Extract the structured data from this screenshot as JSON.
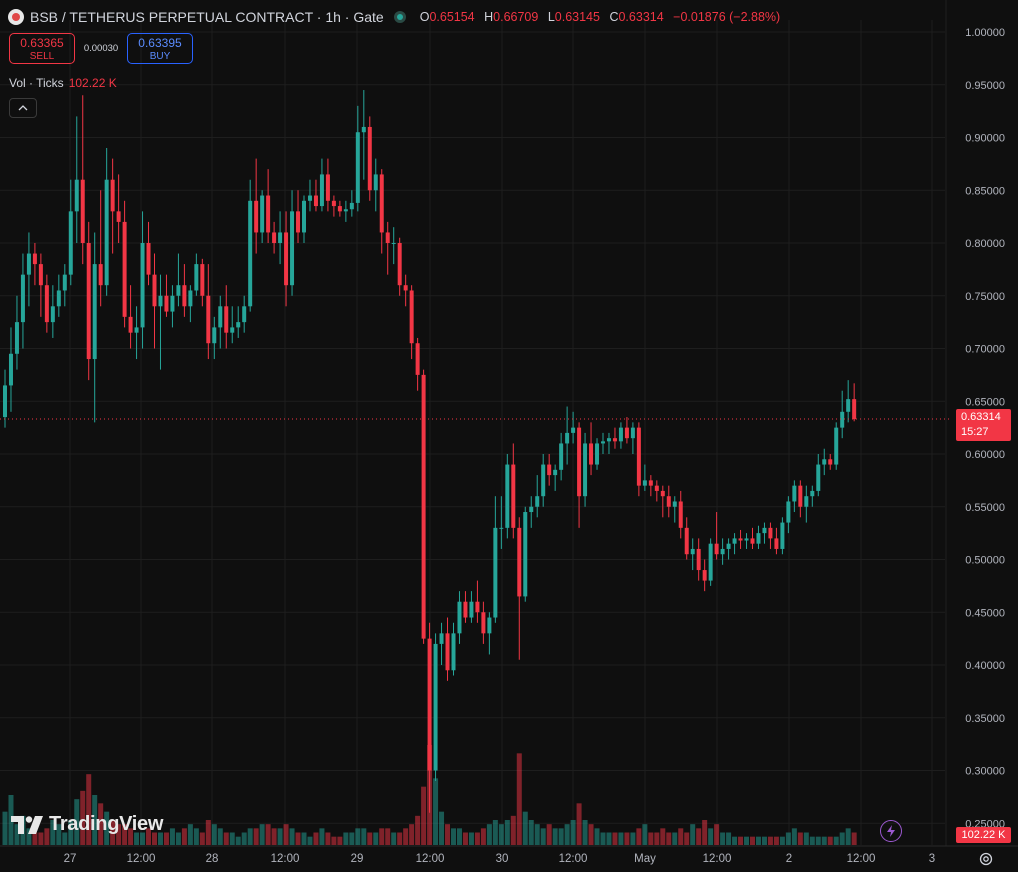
{
  "header": {
    "symbol_title": "BSB / TETHERUS PERPETUAL CONTRACT · 1h · Gate",
    "ohlc": {
      "o_label": "O",
      "o": "0.65154",
      "h_label": "H",
      "h": "0.66709",
      "l_label": "L",
      "l": "0.63145",
      "c_label": "C",
      "c": "0.63314",
      "change": "−0.01876 (−2.88%)"
    }
  },
  "trade": {
    "sell_price": "0.63365",
    "sell_label": "SELL",
    "spread": "0.00030",
    "buy_price": "0.63395",
    "buy_label": "BUY"
  },
  "volume_legend": {
    "label": "Vol · Ticks",
    "value": "102.22 K"
  },
  "logo_text": "TradingView",
  "price_tag": {
    "price": "0.63314",
    "countdown": "15:27"
  },
  "volume_tag": "102.22 K",
  "colors": {
    "up": "#26a69a",
    "down": "#f23645",
    "bg": "#0f0f0f",
    "grid": "#1e1e1e"
  },
  "icons": [
    "symbol-logo-icon",
    "market-status-icon",
    "chevron-up-icon",
    "tradingview-logo-icon",
    "lightning-icon",
    "gear-icon"
  ],
  "chart_data": {
    "type": "candlestick",
    "timeframe": "1h",
    "y_ticks": [
      "1.00000",
      "0.95000",
      "0.90000",
      "0.85000",
      "0.80000",
      "0.75000",
      "0.70000",
      "0.65000",
      "0.60000",
      "0.55000",
      "0.50000",
      "0.45000",
      "0.40000",
      "0.35000",
      "0.30000",
      "0.25000"
    ],
    "ylim": [
      0.232,
      1.012
    ],
    "x_labels": [
      "27",
      "12:00",
      "28",
      "12:00",
      "29",
      "12:00",
      "30",
      "12:00",
      "May",
      "12:00",
      "2",
      "12:00",
      "3"
    ],
    "last_price": 0.63314,
    "candles": [
      {
        "o": 0.635,
        "h": 0.68,
        "l": 0.625,
        "c": 0.665
      },
      {
        "o": 0.665,
        "h": 0.72,
        "l": 0.64,
        "c": 0.695
      },
      {
        "o": 0.695,
        "h": 0.75,
        "l": 0.68,
        "c": 0.725
      },
      {
        "o": 0.725,
        "h": 0.79,
        "l": 0.7,
        "c": 0.77
      },
      {
        "o": 0.77,
        "h": 0.81,
        "l": 0.74,
        "c": 0.79
      },
      {
        "o": 0.79,
        "h": 0.8,
        "l": 0.76,
        "c": 0.78
      },
      {
        "o": 0.78,
        "h": 0.79,
        "l": 0.73,
        "c": 0.76
      },
      {
        "o": 0.76,
        "h": 0.77,
        "l": 0.715,
        "c": 0.725
      },
      {
        "o": 0.725,
        "h": 0.76,
        "l": 0.71,
        "c": 0.74
      },
      {
        "o": 0.74,
        "h": 0.77,
        "l": 0.73,
        "c": 0.755
      },
      {
        "o": 0.755,
        "h": 0.78,
        "l": 0.74,
        "c": 0.77
      },
      {
        "o": 0.77,
        "h": 0.86,
        "l": 0.76,
        "c": 0.83
      },
      {
        "o": 0.83,
        "h": 0.92,
        "l": 0.8,
        "c": 0.86
      },
      {
        "o": 0.86,
        "h": 0.94,
        "l": 0.78,
        "c": 0.8
      },
      {
        "o": 0.8,
        "h": 0.82,
        "l": 0.67,
        "c": 0.69
      },
      {
        "o": 0.69,
        "h": 0.81,
        "l": 0.63,
        "c": 0.78
      },
      {
        "o": 0.78,
        "h": 0.85,
        "l": 0.74,
        "c": 0.76
      },
      {
        "o": 0.76,
        "h": 0.89,
        "l": 0.75,
        "c": 0.86
      },
      {
        "o": 0.86,
        "h": 0.88,
        "l": 0.79,
        "c": 0.83
      },
      {
        "o": 0.83,
        "h": 0.865,
        "l": 0.8,
        "c": 0.82
      },
      {
        "o": 0.82,
        "h": 0.84,
        "l": 0.72,
        "c": 0.73
      },
      {
        "o": 0.73,
        "h": 0.76,
        "l": 0.7,
        "c": 0.715
      },
      {
        "o": 0.715,
        "h": 0.74,
        "l": 0.69,
        "c": 0.72
      },
      {
        "o": 0.72,
        "h": 0.83,
        "l": 0.7,
        "c": 0.8
      },
      {
        "o": 0.8,
        "h": 0.82,
        "l": 0.76,
        "c": 0.77
      },
      {
        "o": 0.77,
        "h": 0.79,
        "l": 0.7,
        "c": 0.74
      },
      {
        "o": 0.74,
        "h": 0.77,
        "l": 0.68,
        "c": 0.75
      },
      {
        "o": 0.75,
        "h": 0.77,
        "l": 0.73,
        "c": 0.735
      },
      {
        "o": 0.735,
        "h": 0.76,
        "l": 0.72,
        "c": 0.75
      },
      {
        "o": 0.75,
        "h": 0.79,
        "l": 0.74,
        "c": 0.76
      },
      {
        "o": 0.76,
        "h": 0.78,
        "l": 0.73,
        "c": 0.74
      },
      {
        "o": 0.74,
        "h": 0.76,
        "l": 0.725,
        "c": 0.755
      },
      {
        "o": 0.755,
        "h": 0.79,
        "l": 0.75,
        "c": 0.78
      },
      {
        "o": 0.78,
        "h": 0.785,
        "l": 0.74,
        "c": 0.75
      },
      {
        "o": 0.75,
        "h": 0.78,
        "l": 0.69,
        "c": 0.705
      },
      {
        "o": 0.705,
        "h": 0.73,
        "l": 0.69,
        "c": 0.72
      },
      {
        "o": 0.72,
        "h": 0.75,
        "l": 0.7,
        "c": 0.74
      },
      {
        "o": 0.74,
        "h": 0.76,
        "l": 0.7,
        "c": 0.715
      },
      {
        "o": 0.715,
        "h": 0.74,
        "l": 0.705,
        "c": 0.72
      },
      {
        "o": 0.72,
        "h": 0.74,
        "l": 0.71,
        "c": 0.725
      },
      {
        "o": 0.725,
        "h": 0.75,
        "l": 0.715,
        "c": 0.74
      },
      {
        "o": 0.74,
        "h": 0.86,
        "l": 0.735,
        "c": 0.84
      },
      {
        "o": 0.84,
        "h": 0.88,
        "l": 0.79,
        "c": 0.81
      },
      {
        "o": 0.81,
        "h": 0.85,
        "l": 0.8,
        "c": 0.845
      },
      {
        "o": 0.845,
        "h": 0.87,
        "l": 0.8,
        "c": 0.81
      },
      {
        "o": 0.81,
        "h": 0.82,
        "l": 0.79,
        "c": 0.8
      },
      {
        "o": 0.8,
        "h": 0.83,
        "l": 0.78,
        "c": 0.81
      },
      {
        "o": 0.81,
        "h": 0.83,
        "l": 0.74,
        "c": 0.76
      },
      {
        "o": 0.76,
        "h": 0.85,
        "l": 0.75,
        "c": 0.83
      },
      {
        "o": 0.83,
        "h": 0.85,
        "l": 0.8,
        "c": 0.81
      },
      {
        "o": 0.81,
        "h": 0.845,
        "l": 0.8,
        "c": 0.84
      },
      {
        "o": 0.84,
        "h": 0.86,
        "l": 0.83,
        "c": 0.845
      },
      {
        "o": 0.845,
        "h": 0.86,
        "l": 0.83,
        "c": 0.835
      },
      {
        "o": 0.835,
        "h": 0.88,
        "l": 0.83,
        "c": 0.865
      },
      {
        "o": 0.865,
        "h": 0.88,
        "l": 0.83,
        "c": 0.84
      },
      {
        "o": 0.84,
        "h": 0.845,
        "l": 0.825,
        "c": 0.835
      },
      {
        "o": 0.835,
        "h": 0.84,
        "l": 0.825,
        "c": 0.83
      },
      {
        "o": 0.83,
        "h": 0.84,
        "l": 0.82,
        "c": 0.832
      },
      {
        "o": 0.832,
        "h": 0.85,
        "l": 0.825,
        "c": 0.838
      },
      {
        "o": 0.838,
        "h": 0.93,
        "l": 0.83,
        "c": 0.905
      },
      {
        "o": 0.905,
        "h": 0.945,
        "l": 0.86,
        "c": 0.91
      },
      {
        "o": 0.91,
        "h": 0.92,
        "l": 0.84,
        "c": 0.85
      },
      {
        "o": 0.85,
        "h": 0.88,
        "l": 0.83,
        "c": 0.865
      },
      {
        "o": 0.865,
        "h": 0.87,
        "l": 0.79,
        "c": 0.81
      },
      {
        "o": 0.81,
        "h": 0.82,
        "l": 0.77,
        "c": 0.8
      },
      {
        "o": 0.8,
        "h": 0.815,
        "l": 0.78,
        "c": 0.8
      },
      {
        "o": 0.8,
        "h": 0.805,
        "l": 0.75,
        "c": 0.76
      },
      {
        "o": 0.76,
        "h": 0.77,
        "l": 0.74,
        "c": 0.755
      },
      {
        "o": 0.755,
        "h": 0.76,
        "l": 0.69,
        "c": 0.705
      },
      {
        "o": 0.705,
        "h": 0.71,
        "l": 0.66,
        "c": 0.675
      },
      {
        "o": 0.675,
        "h": 0.68,
        "l": 0.42,
        "c": 0.425
      },
      {
        "o": 0.425,
        "h": 0.44,
        "l": 0.26,
        "c": 0.3
      },
      {
        "o": 0.3,
        "h": 0.43,
        "l": 0.29,
        "c": 0.42
      },
      {
        "o": 0.42,
        "h": 0.44,
        "l": 0.4,
        "c": 0.43
      },
      {
        "o": 0.43,
        "h": 0.445,
        "l": 0.385,
        "c": 0.395
      },
      {
        "o": 0.395,
        "h": 0.44,
        "l": 0.39,
        "c": 0.43
      },
      {
        "o": 0.43,
        "h": 0.47,
        "l": 0.42,
        "c": 0.46
      },
      {
        "o": 0.46,
        "h": 0.47,
        "l": 0.44,
        "c": 0.445
      },
      {
        "o": 0.445,
        "h": 0.47,
        "l": 0.44,
        "c": 0.46
      },
      {
        "o": 0.46,
        "h": 0.48,
        "l": 0.44,
        "c": 0.45
      },
      {
        "o": 0.45,
        "h": 0.46,
        "l": 0.42,
        "c": 0.43
      },
      {
        "o": 0.43,
        "h": 0.45,
        "l": 0.41,
        "c": 0.445
      },
      {
        "o": 0.445,
        "h": 0.56,
        "l": 0.44,
        "c": 0.53
      },
      {
        "o": 0.53,
        "h": 0.56,
        "l": 0.51,
        "c": 0.53
      },
      {
        "o": 0.53,
        "h": 0.6,
        "l": 0.52,
        "c": 0.59
      },
      {
        "o": 0.59,
        "h": 0.61,
        "l": 0.52,
        "c": 0.53
      },
      {
        "o": 0.53,
        "h": 0.54,
        "l": 0.405,
        "c": 0.465
      },
      {
        "o": 0.465,
        "h": 0.55,
        "l": 0.46,
        "c": 0.545
      },
      {
        "o": 0.545,
        "h": 0.56,
        "l": 0.53,
        "c": 0.55
      },
      {
        "o": 0.55,
        "h": 0.58,
        "l": 0.54,
        "c": 0.56
      },
      {
        "o": 0.56,
        "h": 0.6,
        "l": 0.55,
        "c": 0.59
      },
      {
        "o": 0.59,
        "h": 0.6,
        "l": 0.57,
        "c": 0.58
      },
      {
        "o": 0.58,
        "h": 0.59,
        "l": 0.565,
        "c": 0.585
      },
      {
        "o": 0.585,
        "h": 0.62,
        "l": 0.575,
        "c": 0.61
      },
      {
        "o": 0.61,
        "h": 0.645,
        "l": 0.59,
        "c": 0.62
      },
      {
        "o": 0.62,
        "h": 0.64,
        "l": 0.61,
        "c": 0.625
      },
      {
        "o": 0.625,
        "h": 0.63,
        "l": 0.53,
        "c": 0.56
      },
      {
        "o": 0.56,
        "h": 0.62,
        "l": 0.55,
        "c": 0.61
      },
      {
        "o": 0.61,
        "h": 0.63,
        "l": 0.58,
        "c": 0.59
      },
      {
        "o": 0.59,
        "h": 0.615,
        "l": 0.585,
        "c": 0.61
      },
      {
        "o": 0.61,
        "h": 0.62,
        "l": 0.6,
        "c": 0.612
      },
      {
        "o": 0.612,
        "h": 0.62,
        "l": 0.6,
        "c": 0.615
      },
      {
        "o": 0.615,
        "h": 0.625,
        "l": 0.605,
        "c": 0.612
      },
      {
        "o": 0.612,
        "h": 0.63,
        "l": 0.605,
        "c": 0.625
      },
      {
        "o": 0.625,
        "h": 0.635,
        "l": 0.61,
        "c": 0.615
      },
      {
        "o": 0.615,
        "h": 0.63,
        "l": 0.6,
        "c": 0.625
      },
      {
        "o": 0.625,
        "h": 0.63,
        "l": 0.56,
        "c": 0.57
      },
      {
        "o": 0.57,
        "h": 0.59,
        "l": 0.565,
        "c": 0.575
      },
      {
        "o": 0.575,
        "h": 0.58,
        "l": 0.56,
        "c": 0.57
      },
      {
        "o": 0.57,
        "h": 0.575,
        "l": 0.555,
        "c": 0.565
      },
      {
        "o": 0.565,
        "h": 0.57,
        "l": 0.54,
        "c": 0.56
      },
      {
        "o": 0.56,
        "h": 0.57,
        "l": 0.54,
        "c": 0.55
      },
      {
        "o": 0.55,
        "h": 0.56,
        "l": 0.535,
        "c": 0.555
      },
      {
        "o": 0.555,
        "h": 0.565,
        "l": 0.52,
        "c": 0.53
      },
      {
        "o": 0.53,
        "h": 0.54,
        "l": 0.5,
        "c": 0.505
      },
      {
        "o": 0.505,
        "h": 0.52,
        "l": 0.49,
        "c": 0.51
      },
      {
        "o": 0.51,
        "h": 0.52,
        "l": 0.48,
        "c": 0.49
      },
      {
        "o": 0.49,
        "h": 0.5,
        "l": 0.47,
        "c": 0.48
      },
      {
        "o": 0.48,
        "h": 0.52,
        "l": 0.475,
        "c": 0.515
      },
      {
        "o": 0.515,
        "h": 0.545,
        "l": 0.5,
        "c": 0.505
      },
      {
        "o": 0.505,
        "h": 0.52,
        "l": 0.495,
        "c": 0.51
      },
      {
        "o": 0.51,
        "h": 0.52,
        "l": 0.5,
        "c": 0.515
      },
      {
        "o": 0.515,
        "h": 0.525,
        "l": 0.505,
        "c": 0.52
      },
      {
        "o": 0.52,
        "h": 0.528,
        "l": 0.51,
        "c": 0.518
      },
      {
        "o": 0.518,
        "h": 0.525,
        "l": 0.51,
        "c": 0.52
      },
      {
        "o": 0.52,
        "h": 0.53,
        "l": 0.51,
        "c": 0.515
      },
      {
        "o": 0.515,
        "h": 0.532,
        "l": 0.51,
        "c": 0.525
      },
      {
        "o": 0.525,
        "h": 0.535,
        "l": 0.515,
        "c": 0.53
      },
      {
        "o": 0.53,
        "h": 0.535,
        "l": 0.51,
        "c": 0.52
      },
      {
        "o": 0.52,
        "h": 0.53,
        "l": 0.505,
        "c": 0.51
      },
      {
        "o": 0.51,
        "h": 0.54,
        "l": 0.505,
        "c": 0.535
      },
      {
        "o": 0.535,
        "h": 0.56,
        "l": 0.525,
        "c": 0.555
      },
      {
        "o": 0.555,
        "h": 0.575,
        "l": 0.545,
        "c": 0.57
      },
      {
        "o": 0.57,
        "h": 0.575,
        "l": 0.54,
        "c": 0.55
      },
      {
        "o": 0.55,
        "h": 0.57,
        "l": 0.535,
        "c": 0.56
      },
      {
        "o": 0.56,
        "h": 0.57,
        "l": 0.55,
        "c": 0.565
      },
      {
        "o": 0.565,
        "h": 0.6,
        "l": 0.56,
        "c": 0.59
      },
      {
        "o": 0.59,
        "h": 0.605,
        "l": 0.58,
        "c": 0.595
      },
      {
        "o": 0.595,
        "h": 0.6,
        "l": 0.585,
        "c": 0.59
      },
      {
        "o": 0.59,
        "h": 0.63,
        "l": 0.585,
        "c": 0.625
      },
      {
        "o": 0.625,
        "h": 0.66,
        "l": 0.615,
        "c": 0.64
      },
      {
        "o": 0.64,
        "h": 0.67,
        "l": 0.63,
        "c": 0.652
      },
      {
        "o": 0.652,
        "h": 0.667,
        "l": 0.631,
        "c": 0.633
      }
    ],
    "volumes": [
      0.8,
      1.2,
      0.5,
      0.7,
      0.4,
      0.3,
      0.3,
      0.4,
      0.6,
      0.5,
      0.3,
      0.6,
      1.1,
      1.3,
      1.7,
      1.2,
      1.0,
      0.8,
      0.6,
      0.5,
      0.5,
      0.4,
      0.3,
      0.3,
      0.4,
      0.3,
      0.3,
      0.3,
      0.4,
      0.3,
      0.4,
      0.5,
      0.4,
      0.3,
      0.6,
      0.5,
      0.4,
      0.3,
      0.3,
      0.2,
      0.3,
      0.4,
      0.4,
      0.5,
      0.5,
      0.4,
      0.4,
      0.5,
      0.4,
      0.3,
      0.3,
      0.2,
      0.3,
      0.4,
      0.3,
      0.2,
      0.2,
      0.3,
      0.3,
      0.4,
      0.4,
      0.3,
      0.3,
      0.4,
      0.4,
      0.3,
      0.3,
      0.4,
      0.5,
      0.7,
      1.4,
      2.4,
      1.6,
      0.8,
      0.5,
      0.4,
      0.4,
      0.3,
      0.3,
      0.3,
      0.4,
      0.5,
      0.6,
      0.5,
      0.6,
      0.7,
      2.2,
      0.8,
      0.6,
      0.5,
      0.4,
      0.5,
      0.4,
      0.4,
      0.5,
      0.6,
      1.0,
      0.6,
      0.5,
      0.4,
      0.3,
      0.3,
      0.3,
      0.3,
      0.3,
      0.3,
      0.4,
      0.5,
      0.3,
      0.3,
      0.4,
      0.3,
      0.3,
      0.4,
      0.3,
      0.5,
      0.4,
      0.6,
      0.4,
      0.5,
      0.3,
      0.3,
      0.2,
      0.2,
      0.2,
      0.2,
      0.2,
      0.2,
      0.2,
      0.2,
      0.2,
      0.3,
      0.4,
      0.3,
      0.3,
      0.2,
      0.2,
      0.2,
      0.2,
      0.2,
      0.3,
      0.4,
      0.3,
      0.3
    ]
  }
}
